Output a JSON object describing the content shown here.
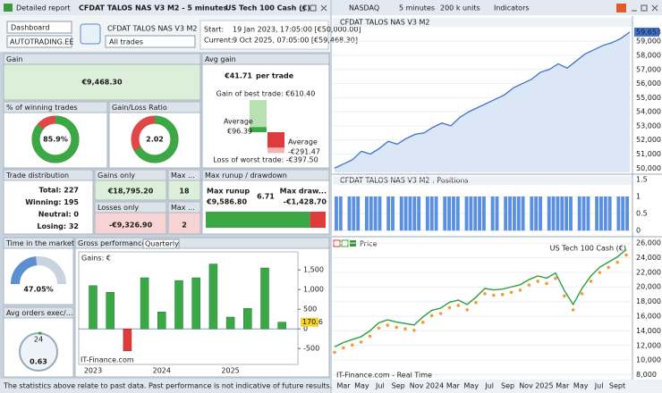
{
  "left": {
    "title_bar": {
      "title": "Detailed report",
      "strategy": "CFDAT TALOS NAS V3 M2 - 5 minutes",
      "instrument": "US Tech 100 Cash (€)"
    },
    "toolbar": {
      "view": "Dashboard",
      "account": "AUTOTRADING.EE",
      "strategy": "CFDAT TALOS NAS V3 M2",
      "filter": "All trades",
      "start_label": "Start:",
      "start": "19 Jan 2023, 17:05:00 [€50,000.00]",
      "current_label": "Current:",
      "current": "9 Oct 2025, 07:05:00 [€59,468.30]"
    },
    "gain": {
      "label": "Gain",
      "value": "€9,468.30"
    },
    "avg_gain": {
      "label": "Avg gain",
      "value": "€41.71",
      "unit": "per trade",
      "best": {
        "value": 610.4,
        "label": "Gain of best trade: €610.40"
      },
      "avg_win_caption": "Average",
      "avg_win": {
        "value": 96.39,
        "label": "€96.39"
      },
      "avg_loss_caption": "Average",
      "avg_loss": {
        "value": -291.47,
        "label": "-€291.47"
      },
      "worst": {
        "value": -397.5,
        "label": "Loss of worst trade: -€397.50"
      }
    },
    "winning_trades": {
      "label": "% of winning trades",
      "value": {
        "value": 85.9,
        "label": "85.9%"
      }
    },
    "gain_loss_ratio": {
      "label": "Gain/Loss Ratio",
      "value": 2.02
    },
    "trade_distribution": {
      "label": "Trade distribution",
      "total": "Total: 227",
      "winning": "Winning: 195",
      "neutral": "Neutral: 0",
      "losing": "Losing: 32"
    },
    "gains_only": {
      "label": "Gains only",
      "value": "€18,795.20",
      "max_label": "Max ...",
      "max": 18
    },
    "losses_only": {
      "label": "Losses only",
      "value": "-€9,326.90",
      "max_label": "Max ...",
      "max": 2
    },
    "runup_drawdown": {
      "label": "Max runup / drawdown",
      "runup_label": "Max runup",
      "runup": {
        "value": 9586.8,
        "label": "€9,586.80"
      },
      "ratio": 6.71,
      "drawdown_label": "Max draw...",
      "drawdown": {
        "value": -1428.7,
        "label": "-€1,428.70"
      }
    },
    "time_in_market": {
      "label": "Time in the market",
      "value": {
        "value": 47.05,
        "label": "47.05%"
      }
    },
    "avg_orders": {
      "label": "Avg orders exec/...",
      "hours": 24,
      "value": 0.63
    },
    "gross_performance": {
      "label": "Gross performance",
      "period": "Quarterly",
      "axis_label": "Gains: €",
      "values": [
        1100,
        930,
        -560,
        1300,
        430,
        1230,
        1300,
        1650,
        300,
        520,
        1550,
        170.6
      ],
      "ylim": [
        -700,
        1800
      ],
      "yticks": [
        {
          "value": 1500,
          "label": "1,500"
        },
        {
          "value": 1000,
          "label": "1,000"
        },
        500,
        0,
        -500
      ],
      "years": [
        "2023",
        "2024",
        "2025"
      ],
      "source": "IT-Finance.com"
    },
    "footer": "The statistics above relate to past data. Past performance is not indicative of future results."
  },
  "right": {
    "toolbar": {
      "market": "NASDAQ",
      "timeframe": "5 minutes",
      "size": "200 k units",
      "indicators": "Indicators"
    },
    "equity": {
      "title": "CFDAT TALOS NAS V3 M2",
      "values": [
        50000,
        50300,
        50600,
        51200,
        51000,
        51400,
        51900,
        51700,
        52100,
        52400,
        52500,
        52900,
        53200,
        53000,
        53600,
        54000,
        54300,
        54600,
        54900,
        55200,
        55700,
        56000,
        56300,
        56800,
        57000,
        57400,
        57100,
        57600,
        58100,
        58400,
        58700,
        58900,
        59200,
        59653
      ],
      "last": {
        "value": 59653,
        "label": "59,653"
      },
      "ylim": [
        49700,
        59900
      ],
      "yticks": [
        {
          "value": 50000,
          "label": "50,000"
        },
        {
          "value": 51000,
          "label": "51,000"
        },
        {
          "value": 52000,
          "label": "52,000"
        },
        {
          "value": 53000,
          "label": "53,000"
        },
        {
          "value": 54000,
          "label": "54,000"
        },
        {
          "value": 55000,
          "label": "55,000"
        },
        {
          "value": 56000,
          "label": "56,000"
        },
        {
          "value": 57000,
          "label": "57,000"
        },
        {
          "value": 58000,
          "label": "58,000"
        },
        {
          "value": 59000,
          "label": "59,000"
        }
      ]
    },
    "positions": {
      "title": "CFDAT TALOS NAS V3 M2 : Positions",
      "values": [
        1,
        1,
        0,
        1,
        1,
        1,
        0,
        1,
        1,
        1,
        1,
        0,
        1,
        1,
        0,
        1,
        1,
        1,
        1,
        1,
        0,
        1,
        1,
        1,
        0,
        1,
        1,
        1,
        1,
        0,
        1,
        1,
        1,
        1,
        1,
        0,
        1,
        1,
        0,
        1,
        1,
        1,
        1,
        1,
        0,
        1,
        1,
        1,
        0,
        1,
        1,
        1,
        1,
        1,
        1,
        0,
        1,
        1,
        1,
        0,
        1,
        1,
        1,
        1,
        0,
        1,
        1,
        1
      ],
      "ylim": [
        -0.1,
        1.55
      ],
      "yticks": [
        1.5,
        1,
        0.5,
        0
      ]
    },
    "price": {
      "title": "Price",
      "instrument": "US Tech 100 Cash (€)",
      "values": [
        11800,
        12400,
        12800,
        13200,
        14000,
        15100,
        15500,
        15200,
        15000,
        14800,
        15900,
        16800,
        17100,
        17900,
        18200,
        17600,
        18600,
        19800,
        19600,
        19700,
        20000,
        20300,
        21000,
        21500,
        21200,
        21900,
        19500,
        17600,
        19800,
        21500,
        22700,
        23400,
        24100,
        25100
      ],
      "ylim": [
        7700,
        26500
      ],
      "yticks": [
        {
          "value": 8000,
          "label": "8,000"
        },
        {
          "value": 10000,
          "label": "10,000"
        },
        {
          "value": 12000,
          "label": "12,000"
        },
        {
          "value": 14000,
          "label": "14,000"
        },
        {
          "value": 16000,
          "label": "16,000"
        },
        {
          "value": 18000,
          "label": "18,000"
        },
        {
          "value": 20000,
          "label": "20,000"
        },
        {
          "value": 22000,
          "label": "22,000"
        },
        {
          "value": 24000,
          "label": "24,000"
        },
        {
          "value": 26000,
          "label": "26,000"
        }
      ],
      "source": "IT-Finance.com - Real Time"
    },
    "x_labels": [
      "Mar",
      "May",
      "Jul",
      "Sep",
      "Nov",
      "2024",
      "Mar",
      "May",
      "Jul",
      "Sep",
      "Nov",
      "2025",
      "Mar",
      "May",
      "Jul",
      "Sept"
    ]
  }
}
